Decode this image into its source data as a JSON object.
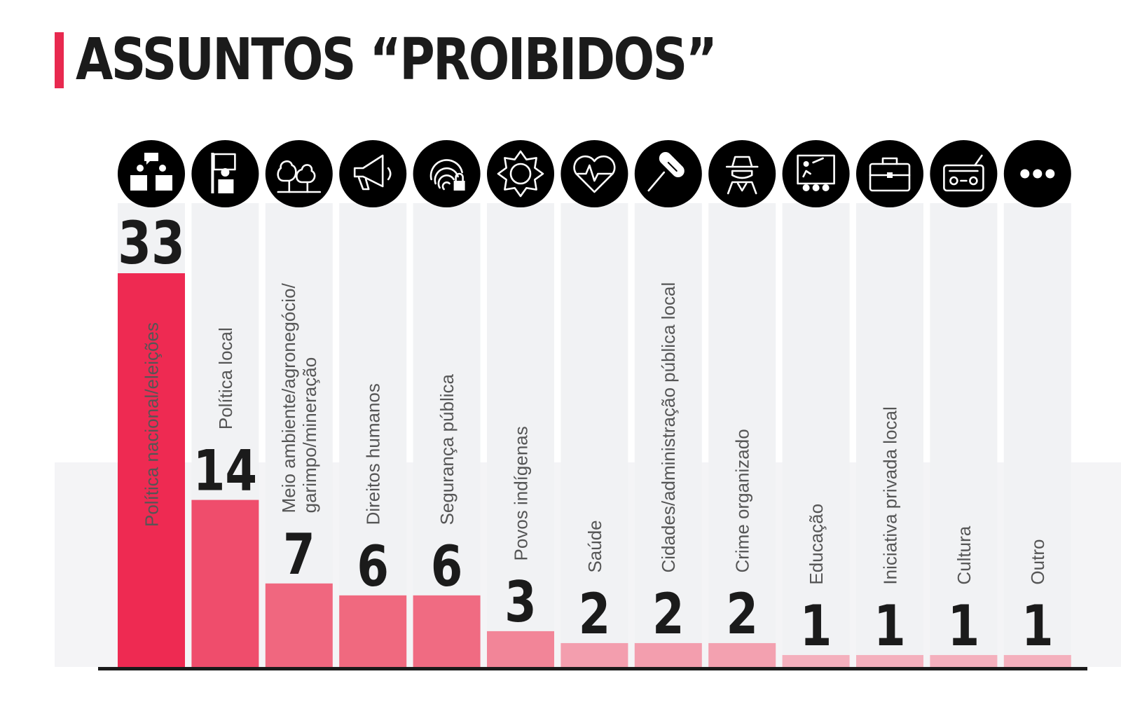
{
  "title": "ASSUNTOS “PROIBIDOS”",
  "colors": {
    "accent": "#e8294f",
    "column_bg": "#f1f2f4",
    "text": "#1b1b1b",
    "label": "#555555"
  },
  "chart_data": {
    "type": "bar",
    "title": "ASSUNTOS “PROIBIDOS”",
    "xlabel": "",
    "ylabel": "",
    "ylim": [
      0,
      33
    ],
    "grid": false,
    "legend": "none",
    "categories": [
      "Política nacional/eleições",
      "Política local",
      "Meio ambiente/agronegócio/\ngarimpo/mineração",
      "Direitos humanos",
      "Segurança pública",
      "Povos indígenas",
      "Saúde",
      "Cidades/administração pública local",
      "Crime organizado",
      "Educação",
      "Iniciativa privada local",
      "Cultura",
      "Outro"
    ],
    "values": [
      33,
      14,
      7,
      6,
      6,
      3,
      2,
      2,
      2,
      1,
      1,
      1,
      1
    ],
    "icons": [
      "debate-icon",
      "politician-icon",
      "trees-icon",
      "megaphone-icon",
      "fingerprint-lock-icon",
      "sun-icon",
      "heartbeat-icon",
      "microphone-icon",
      "spy-icon",
      "classroom-icon",
      "briefcase-icon",
      "radio-icon",
      "more-icon"
    ],
    "bar_colors": [
      "#ee2a52",
      "#ef4d6c",
      "#f0677f",
      "#f0697f",
      "#f06b82",
      "#f28598",
      "#f39eae",
      "#f39eae",
      "#f3a1b0",
      "#f4b0bd",
      "#f4b0bd",
      "#f4b0bd",
      "#f4b0bd"
    ]
  }
}
